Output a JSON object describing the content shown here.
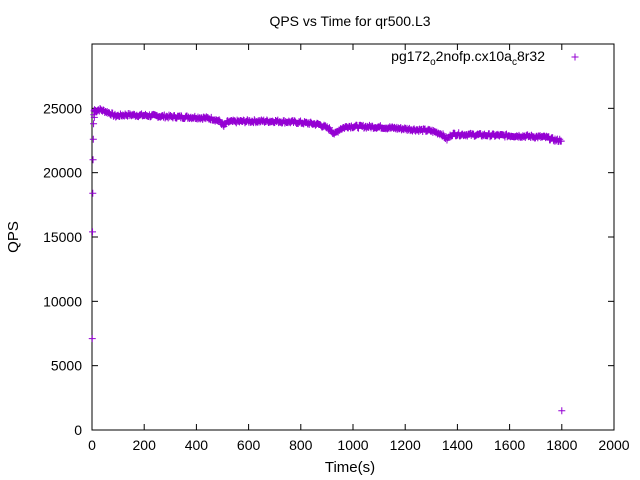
{
  "chart_data": {
    "type": "scatter",
    "title": "QPS vs Time for qr500.L3",
    "xlabel": "Time(s)",
    "ylabel": "QPS",
    "xlim": [
      0,
      2000
    ],
    "ylim": [
      0,
      30000
    ],
    "xticks": [
      0,
      200,
      400,
      600,
      800,
      1000,
      1200,
      1400,
      1600,
      1800,
      2000
    ],
    "yticks": [
      0,
      5000,
      10000,
      15000,
      20000,
      25000
    ],
    "grid": false,
    "legend_position": "top-right",
    "marker": "+",
    "series": [
      {
        "name_parts": [
          "pg172",
          "o",
          "2nofp.cx10a",
          "c",
          "8r32"
        ],
        "color": "#9400d3",
        "startup_points": [
          [
            1,
            7100
          ],
          [
            2,
            15400
          ],
          [
            3,
            18400
          ],
          [
            4,
            21000
          ],
          [
            5,
            22600
          ],
          [
            6,
            23800
          ],
          [
            7,
            24500
          ],
          [
            8,
            24800
          ],
          [
            9,
            24300
          ],
          [
            10,
            24900
          ]
        ],
        "trend_points": [
          [
            10,
            24800
          ],
          [
            30,
            24900
          ],
          [
            60,
            24700
          ],
          [
            90,
            24400
          ],
          [
            130,
            24500
          ],
          [
            200,
            24450
          ],
          [
            300,
            24350
          ],
          [
            400,
            24300
          ],
          [
            460,
            24200
          ],
          [
            490,
            24000
          ],
          [
            505,
            23600
          ],
          [
            520,
            23950
          ],
          [
            600,
            24000
          ],
          [
            700,
            24000
          ],
          [
            800,
            23900
          ],
          [
            870,
            23750
          ],
          [
            910,
            23400
          ],
          [
            930,
            23000
          ],
          [
            950,
            23400
          ],
          [
            980,
            23600
          ],
          [
            1100,
            23550
          ],
          [
            1200,
            23400
          ],
          [
            1300,
            23250
          ],
          [
            1340,
            23000
          ],
          [
            1360,
            22600
          ],
          [
            1380,
            23000
          ],
          [
            1450,
            22950
          ],
          [
            1550,
            22900
          ],
          [
            1650,
            22850
          ],
          [
            1740,
            22750
          ],
          [
            1780,
            22500
          ],
          [
            1800,
            22550
          ]
        ],
        "spread": 120,
        "step_s": 3,
        "outliers": [
          [
            1800,
            1500
          ]
        ]
      }
    ]
  }
}
